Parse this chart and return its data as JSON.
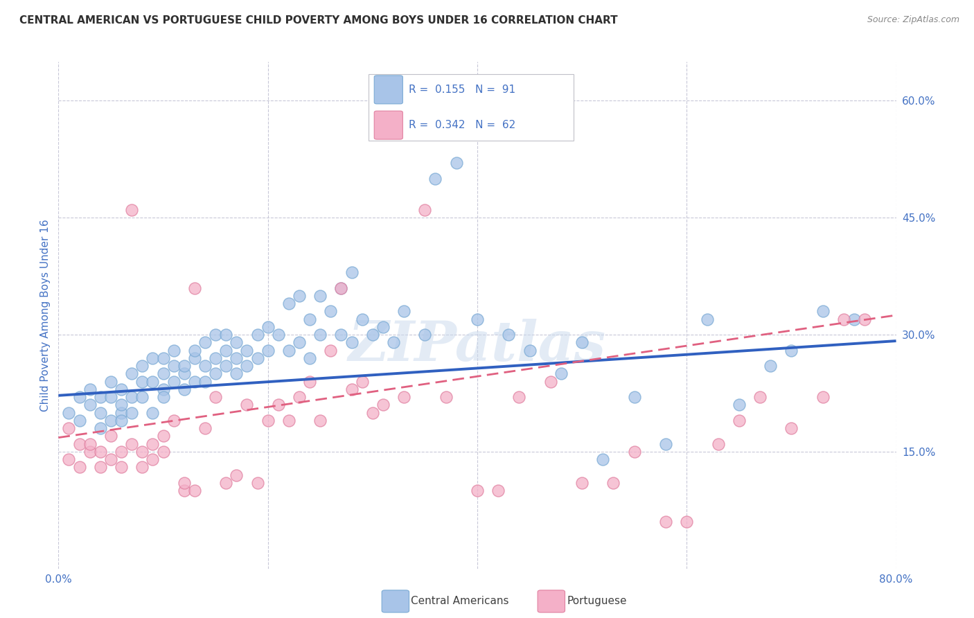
{
  "title": "CENTRAL AMERICAN VS PORTUGUESE CHILD POVERTY AMONG BOYS UNDER 16 CORRELATION CHART",
  "source": "Source: ZipAtlas.com",
  "ylabel": "Child Poverty Among Boys Under 16",
  "xlim": [
    0.0,
    0.8
  ],
  "ylim": [
    0.0,
    0.65
  ],
  "r_ca": 0.155,
  "n_ca": 91,
  "r_pt": 0.342,
  "n_pt": 62,
  "ca_color_fill": "#a8c4e8",
  "ca_color_edge": "#7aaad4",
  "pt_color_fill": "#f4b0c8",
  "pt_color_edge": "#e080a0",
  "ca_line_color": "#3060c0",
  "pt_line_color": "#e06080",
  "title_color": "#303030",
  "axis_label_color": "#4472c4",
  "tick_color": "#4472c4",
  "background_color": "#ffffff",
  "grid_color": "#c8c8d8",
  "watermark": "ZIPatlas",
  "ca_line_x0": 0.0,
  "ca_line_y0": 0.222,
  "ca_line_x1": 0.8,
  "ca_line_y1": 0.292,
  "pt_line_x0": 0.0,
  "pt_line_y0": 0.168,
  "pt_line_x1": 0.8,
  "pt_line_y1": 0.325,
  "ca_scatter_x": [
    0.01,
    0.02,
    0.02,
    0.03,
    0.03,
    0.04,
    0.04,
    0.04,
    0.05,
    0.05,
    0.05,
    0.06,
    0.06,
    0.06,
    0.06,
    0.07,
    0.07,
    0.07,
    0.08,
    0.08,
    0.08,
    0.09,
    0.09,
    0.09,
    0.1,
    0.1,
    0.1,
    0.1,
    0.11,
    0.11,
    0.11,
    0.12,
    0.12,
    0.12,
    0.13,
    0.13,
    0.13,
    0.14,
    0.14,
    0.14,
    0.15,
    0.15,
    0.15,
    0.16,
    0.16,
    0.16,
    0.17,
    0.17,
    0.17,
    0.18,
    0.18,
    0.19,
    0.19,
    0.2,
    0.2,
    0.21,
    0.22,
    0.22,
    0.23,
    0.23,
    0.24,
    0.24,
    0.25,
    0.25,
    0.26,
    0.27,
    0.27,
    0.28,
    0.28,
    0.29,
    0.3,
    0.31,
    0.32,
    0.33,
    0.35,
    0.36,
    0.38,
    0.4,
    0.43,
    0.45,
    0.48,
    0.5,
    0.52,
    0.55,
    0.58,
    0.62,
    0.65,
    0.68,
    0.7,
    0.73,
    0.76
  ],
  "ca_scatter_y": [
    0.2,
    0.22,
    0.19,
    0.21,
    0.23,
    0.2,
    0.22,
    0.18,
    0.19,
    0.22,
    0.24,
    0.2,
    0.23,
    0.21,
    0.19,
    0.22,
    0.2,
    0.25,
    0.24,
    0.26,
    0.22,
    0.27,
    0.24,
    0.2,
    0.23,
    0.25,
    0.27,
    0.22,
    0.24,
    0.26,
    0.28,
    0.25,
    0.23,
    0.26,
    0.27,
    0.24,
    0.28,
    0.26,
    0.29,
    0.24,
    0.27,
    0.25,
    0.3,
    0.28,
    0.3,
    0.26,
    0.27,
    0.29,
    0.25,
    0.28,
    0.26,
    0.3,
    0.27,
    0.28,
    0.31,
    0.3,
    0.34,
    0.28,
    0.35,
    0.29,
    0.32,
    0.27,
    0.3,
    0.35,
    0.33,
    0.36,
    0.3,
    0.38,
    0.29,
    0.32,
    0.3,
    0.31,
    0.29,
    0.33,
    0.3,
    0.5,
    0.52,
    0.32,
    0.3,
    0.28,
    0.25,
    0.29,
    0.14,
    0.22,
    0.16,
    0.32,
    0.21,
    0.26,
    0.28,
    0.33,
    0.32
  ],
  "pt_scatter_x": [
    0.01,
    0.01,
    0.02,
    0.02,
    0.03,
    0.03,
    0.04,
    0.04,
    0.05,
    0.05,
    0.06,
    0.06,
    0.07,
    0.07,
    0.08,
    0.08,
    0.09,
    0.09,
    0.1,
    0.1,
    0.11,
    0.12,
    0.12,
    0.13,
    0.13,
    0.14,
    0.15,
    0.16,
    0.17,
    0.18,
    0.19,
    0.2,
    0.21,
    0.22,
    0.23,
    0.24,
    0.25,
    0.26,
    0.27,
    0.28,
    0.29,
    0.3,
    0.31,
    0.33,
    0.35,
    0.37,
    0.4,
    0.42,
    0.44,
    0.47,
    0.5,
    0.53,
    0.55,
    0.58,
    0.6,
    0.63,
    0.65,
    0.67,
    0.7,
    0.73,
    0.75,
    0.77
  ],
  "pt_scatter_y": [
    0.18,
    0.14,
    0.16,
    0.13,
    0.15,
    0.16,
    0.13,
    0.15,
    0.14,
    0.17,
    0.15,
    0.13,
    0.16,
    0.46,
    0.13,
    0.15,
    0.16,
    0.14,
    0.15,
    0.17,
    0.19,
    0.1,
    0.11,
    0.1,
    0.36,
    0.18,
    0.22,
    0.11,
    0.12,
    0.21,
    0.11,
    0.19,
    0.21,
    0.19,
    0.22,
    0.24,
    0.19,
    0.28,
    0.36,
    0.23,
    0.24,
    0.2,
    0.21,
    0.22,
    0.46,
    0.22,
    0.1,
    0.1,
    0.22,
    0.24,
    0.11,
    0.11,
    0.15,
    0.06,
    0.06,
    0.16,
    0.19,
    0.22,
    0.18,
    0.22,
    0.32,
    0.32
  ]
}
